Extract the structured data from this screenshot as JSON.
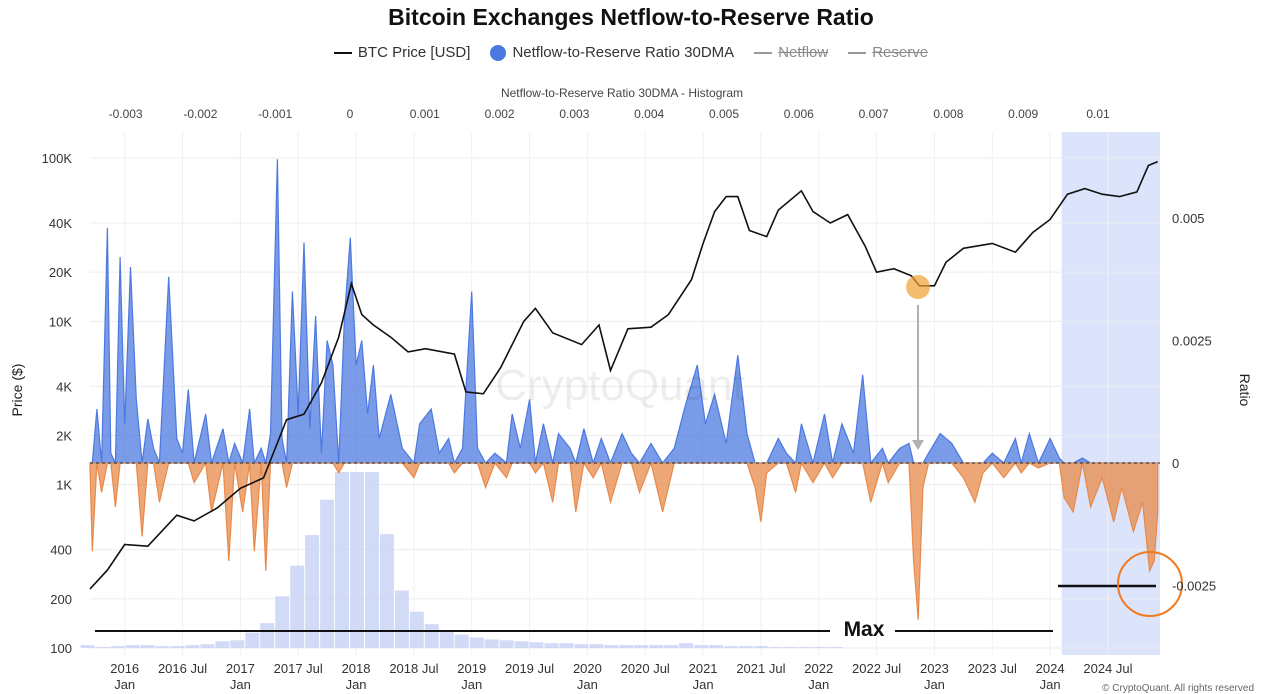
{
  "title": "Bitcoin Exchanges Netflow-to-Reserve Ratio",
  "legend": [
    {
      "label": "BTC Price [USD]",
      "marker": "line",
      "color": "#111111",
      "active": true
    },
    {
      "label": "Netflow-to-Reserve Ratio 30DMA",
      "marker": "dot",
      "color": "#4c79e0",
      "active": true
    },
    {
      "label": "Netflow",
      "marker": "line",
      "color": "#999999",
      "active": false
    },
    {
      "label": "Reserve",
      "marker": "line",
      "color": "#999999",
      "active": false
    }
  ],
  "watermark": "CryptoQuant",
  "footer": "© CryptoQuant. All rights reserved",
  "annotation_max": "Max",
  "colors": {
    "positive": "#4c79e0",
    "negative": "#e8894a",
    "price": "#111111",
    "histogram": "#c9d4f6",
    "highlight": "#dbe4fb",
    "circle": "#f07a1d",
    "marker": "#f0a030"
  },
  "chart_data": {
    "type": "line",
    "y_left": {
      "label": "Price ($)",
      "scale": "log",
      "ticks": [
        "100",
        "200",
        "400",
        "1K",
        "2K",
        "4K",
        "10K",
        "20K",
        "40K",
        "100K"
      ],
      "tick_values": [
        100,
        200,
        400,
        1000,
        2000,
        4000,
        10000,
        20000,
        40000,
        100000
      ]
    },
    "y_right": {
      "label": "Ratio",
      "ticks": [
        "0.005",
        "0.0025",
        "0",
        "-0.0025"
      ],
      "tick_values": [
        0.005,
        0.0025,
        0,
        -0.0025
      ]
    },
    "x_top": {
      "label": "Netflow-to-Reserve Ratio 30DMA - Histogram",
      "ticks": [
        "-0.003",
        "-0.002",
        "-0.001",
        "0",
        "0.001",
        "0.002",
        "0.003",
        "0.004",
        "0.005",
        "0.006",
        "0.007",
        "0.008",
        "0.009",
        "0.01"
      ],
      "tick_values": [
        -0.003,
        -0.002,
        -0.001,
        0,
        0.001,
        0.002,
        0.003,
        0.004,
        0.005,
        0.006,
        0.007,
        0.008,
        0.009,
        0.01
      ]
    },
    "x_bottom": {
      "ticks": [
        {
          "line1": "2016",
          "line2": "Jan",
          "t": 2016.0
        },
        {
          "line1": "2016 Jul",
          "line2": "",
          "t": 2016.5
        },
        {
          "line1": "2017",
          "line2": "Jan",
          "t": 2017.0
        },
        {
          "line1": "2017 Jul",
          "line2": "",
          "t": 2017.5
        },
        {
          "line1": "2018",
          "line2": "Jan",
          "t": 2018.0
        },
        {
          "line1": "2018 Jul",
          "line2": "",
          "t": 2018.5
        },
        {
          "line1": "2019",
          "line2": "Jan",
          "t": 2019.0
        },
        {
          "line1": "2019 Jul",
          "line2": "",
          "t": 2019.5
        },
        {
          "line1": "2020",
          "line2": "Jan",
          "t": 2020.0
        },
        {
          "line1": "2020 Jul",
          "line2": "",
          "t": 2020.5
        },
        {
          "line1": "2021",
          "line2": "Jan",
          "t": 2021.0
        },
        {
          "line1": "2021 Jul",
          "line2": "",
          "t": 2021.5
        },
        {
          "line1": "2022",
          "line2": "Jan",
          "t": 2022.0
        },
        {
          "line1": "2022 Jul",
          "line2": "",
          "t": 2022.5
        },
        {
          "line1": "2023",
          "line2": "Jan",
          "t": 2023.0
        },
        {
          "line1": "2023 Jul",
          "line2": "",
          "t": 2023.5
        },
        {
          "line1": "2024",
          "line2": "Jan",
          "t": 2024.0
        },
        {
          "line1": "2024 Jul",
          "line2": "",
          "t": 2024.5
        }
      ],
      "range": [
        2015.7,
        2024.95
      ]
    },
    "highlight_range": [
      2024.1,
      2024.95
    ],
    "btc_price": [
      [
        2015.7,
        230
      ],
      [
        2015.85,
        300
      ],
      [
        2016.0,
        430
      ],
      [
        2016.2,
        420
      ],
      [
        2016.45,
        650
      ],
      [
        2016.6,
        600
      ],
      [
        2016.8,
        720
      ],
      [
        2017.0,
        950
      ],
      [
        2017.2,
        1100
      ],
      [
        2017.4,
        2500
      ],
      [
        2017.55,
        2700
      ],
      [
        2017.7,
        4200
      ],
      [
        2017.85,
        8000
      ],
      [
        2017.96,
        17000
      ],
      [
        2018.05,
        11000
      ],
      [
        2018.15,
        9500
      ],
      [
        2018.3,
        8000
      ],
      [
        2018.45,
        6500
      ],
      [
        2018.6,
        6800
      ],
      [
        2018.85,
        6300
      ],
      [
        2018.95,
        3700
      ],
      [
        2019.1,
        3600
      ],
      [
        2019.25,
        5200
      ],
      [
        2019.45,
        10000
      ],
      [
        2019.55,
        12000
      ],
      [
        2019.7,
        8500
      ],
      [
        2019.95,
        7200
      ],
      [
        2020.1,
        9500
      ],
      [
        2020.2,
        5000
      ],
      [
        2020.35,
        9000
      ],
      [
        2020.55,
        9200
      ],
      [
        2020.7,
        11000
      ],
      [
        2020.9,
        18000
      ],
      [
        2021.0,
        30000
      ],
      [
        2021.1,
        47000
      ],
      [
        2021.2,
        58000
      ],
      [
        2021.3,
        58000
      ],
      [
        2021.4,
        36000
      ],
      [
        2021.55,
        33000
      ],
      [
        2021.65,
        48000
      ],
      [
        2021.85,
        63000
      ],
      [
        2021.95,
        47000
      ],
      [
        2022.1,
        40000
      ],
      [
        2022.25,
        45000
      ],
      [
        2022.4,
        29000
      ],
      [
        2022.5,
        20000
      ],
      [
        2022.65,
        21000
      ],
      [
        2022.8,
        19000
      ],
      [
        2022.87,
        16500
      ],
      [
        2023.0,
        16500
      ],
      [
        2023.1,
        23000
      ],
      [
        2023.25,
        28000
      ],
      [
        2023.5,
        30000
      ],
      [
        2023.7,
        26500
      ],
      [
        2023.85,
        35000
      ],
      [
        2024.0,
        42000
      ],
      [
        2024.15,
        60000
      ],
      [
        2024.3,
        65000
      ],
      [
        2024.45,
        60000
      ],
      [
        2024.6,
        58000
      ],
      [
        2024.75,
        62000
      ],
      [
        2024.85,
        90000
      ],
      [
        2024.93,
        95000
      ]
    ],
    "netflow_ratio": [
      [
        2015.7,
        -0.0001
      ],
      [
        2015.72,
        -0.0018
      ],
      [
        2015.76,
        0.0011
      ],
      [
        2015.8,
        -0.0006
      ],
      [
        2015.85,
        0.0048
      ],
      [
        2015.88,
        0.0002
      ],
      [
        2015.92,
        -0.0009
      ],
      [
        2015.96,
        0.0042
      ],
      [
        2016.0,
        0.0008
      ],
      [
        2016.05,
        0.004
      ],
      [
        2016.1,
        0.0013
      ],
      [
        2016.15,
        -0.0015
      ],
      [
        2016.2,
        0.0009
      ],
      [
        2016.25,
        0.0003
      ],
      [
        2016.3,
        -0.0008
      ],
      [
        2016.38,
        0.0038
      ],
      [
        2016.45,
        0.0005
      ],
      [
        2016.5,
        0.0002
      ],
      [
        2016.55,
        0.0015
      ],
      [
        2016.6,
        -0.0004
      ],
      [
        2016.7,
        0.001
      ],
      [
        2016.75,
        -0.001
      ],
      [
        2016.85,
        0.0007
      ],
      [
        2016.9,
        -0.002
      ],
      [
        2016.95,
        0.0004
      ],
      [
        2017.02,
        -0.001
      ],
      [
        2017.08,
        0.0011
      ],
      [
        2017.12,
        -0.0018
      ],
      [
        2017.18,
        0.0003
      ],
      [
        2017.22,
        -0.0022
      ],
      [
        2017.26,
        0.0006
      ],
      [
        2017.32,
        0.0062
      ],
      [
        2017.36,
        0.0005
      ],
      [
        2017.4,
        -0.0005
      ],
      [
        2017.45,
        0.0035
      ],
      [
        2017.5,
        0.001
      ],
      [
        2017.55,
        0.0045
      ],
      [
        2017.6,
        0.0007
      ],
      [
        2017.65,
        0.003
      ],
      [
        2017.7,
        0.0002
      ],
      [
        2017.75,
        0.0025
      ],
      [
        2017.8,
        0.002
      ],
      [
        2017.85,
        -0.0002
      ],
      [
        2017.9,
        0.003
      ],
      [
        2017.95,
        0.0046
      ],
      [
        2018.0,
        0.002
      ],
      [
        2018.05,
        0.0025
      ],
      [
        2018.1,
        0.001
      ],
      [
        2018.15,
        0.002
      ],
      [
        2018.2,
        0.0005
      ],
      [
        2018.3,
        0.0014
      ],
      [
        2018.4,
        0.0003
      ],
      [
        2018.5,
        -0.0003
      ],
      [
        2018.55,
        0.0008
      ],
      [
        2018.65,
        0.0011
      ],
      [
        2018.72,
        0.0002
      ],
      [
        2018.8,
        0.0005
      ],
      [
        2018.85,
        -0.0002
      ],
      [
        2018.92,
        0.0003
      ],
      [
        2019.0,
        0.0035
      ],
      [
        2019.05,
        0.0003
      ],
      [
        2019.12,
        -0.0005
      ],
      [
        2019.2,
        0.0002
      ],
      [
        2019.3,
        -0.0003
      ],
      [
        2019.35,
        0.001
      ],
      [
        2019.42,
        0.0003
      ],
      [
        2019.5,
        0.0013
      ],
      [
        2019.55,
        -0.0002
      ],
      [
        2019.62,
        0.0008
      ],
      [
        2019.7,
        -0.0008
      ],
      [
        2019.75,
        0.0006
      ],
      [
        2019.85,
        0.0003
      ],
      [
        2019.9,
        -0.001
      ],
      [
        2019.97,
        0.0007
      ],
      [
        2020.05,
        -0.0003
      ],
      [
        2020.12,
        0.0005
      ],
      [
        2020.2,
        -0.0008
      ],
      [
        2020.3,
        0.0006
      ],
      [
        2020.38,
        0.0002
      ],
      [
        2020.45,
        -0.0006
      ],
      [
        2020.55,
        0.0004
      ],
      [
        2020.65,
        -0.001
      ],
      [
        2020.75,
        0.0003
      ],
      [
        2020.85,
        0.0012
      ],
      [
        2020.95,
        0.002
      ],
      [
        2021.02,
        0.0008
      ],
      [
        2021.1,
        0.0014
      ],
      [
        2021.2,
        0.0004
      ],
      [
        2021.3,
        0.0022
      ],
      [
        2021.38,
        0.0006
      ],
      [
        2021.45,
        -0.0005
      ],
      [
        2021.5,
        -0.0012
      ],
      [
        2021.55,
        -0.0002
      ],
      [
        2021.65,
        0.0005
      ],
      [
        2021.72,
        0.0002
      ],
      [
        2021.8,
        -0.0006
      ],
      [
        2021.85,
        0.0008
      ],
      [
        2021.95,
        -0.0004
      ],
      [
        2022.05,
        0.001
      ],
      [
        2022.12,
        -0.0003
      ],
      [
        2022.2,
        0.0008
      ],
      [
        2022.3,
        0.0002
      ],
      [
        2022.38,
        0.0018
      ],
      [
        2022.45,
        -0.0008
      ],
      [
        2022.55,
        0.0003
      ],
      [
        2022.6,
        -0.0004
      ],
      [
        2022.7,
        0.0003
      ],
      [
        2022.78,
        0.0004
      ],
      [
        2022.82,
        -0.002
      ],
      [
        2022.86,
        -0.0032
      ],
      [
        2022.9,
        -0.0005
      ],
      [
        2022.95,
        0.0002
      ],
      [
        2023.05,
        0.0006
      ],
      [
        2023.15,
        0.0004
      ],
      [
        2023.25,
        -0.0003
      ],
      [
        2023.35,
        -0.0008
      ],
      [
        2023.42,
        -0.0002
      ],
      [
        2023.5,
        0.0002
      ],
      [
        2023.6,
        -0.0003
      ],
      [
        2023.7,
        0.0005
      ],
      [
        2023.75,
        -0.0002
      ],
      [
        2023.82,
        0.0006
      ],
      [
        2023.9,
        -0.0001
      ],
      [
        2024.0,
        0.0005
      ],
      [
        2024.08,
        0.0001
      ],
      [
        2024.12,
        -0.0007
      ],
      [
        2024.2,
        -0.001
      ],
      [
        2024.28,
        0.0001
      ],
      [
        2024.35,
        -0.0009
      ],
      [
        2024.45,
        -0.0003
      ],
      [
        2024.55,
        -0.0012
      ],
      [
        2024.62,
        -0.0005
      ],
      [
        2024.72,
        -0.0014
      ],
      [
        2024.8,
        -0.0008
      ],
      [
        2024.86,
        -0.0022
      ],
      [
        2024.9,
        -0.002
      ],
      [
        2024.93,
        -0.001
      ]
    ],
    "histogram": {
      "bin_values": [
        -0.0035,
        -0.0033,
        -0.0031,
        -0.0029,
        -0.0027,
        -0.0025,
        -0.0023,
        -0.0021,
        -0.0019,
        -0.0017,
        -0.0015,
        -0.0013,
        -0.0011,
        -0.0009,
        -0.0007,
        -0.0005,
        -0.0003,
        -0.0001,
        0.0001,
        0.0003,
        0.0005,
        0.0007,
        0.0009,
        0.0011,
        0.0013,
        0.0015,
        0.0017,
        0.0019,
        0.0021,
        0.0023,
        0.0025,
        0.0027,
        0.0029,
        0.0031,
        0.0033,
        0.0035,
        0.0037,
        0.0039,
        0.0041,
        0.0043,
        0.0045,
        0.0047,
        0.0049,
        0.0051,
        0.0053,
        0.0055,
        0.0057,
        0.0059,
        0.0061,
        0.0063,
        0.0065
      ],
      "counts": [
        3,
        1,
        2,
        3,
        3,
        2,
        2,
        3,
        4,
        7,
        8,
        16,
        26,
        54,
        86,
        118,
        155,
        184,
        184,
        184,
        119,
        60,
        38,
        25,
        17,
        14,
        11,
        9,
        8,
        7,
        6,
        5,
        5,
        4,
        4,
        3,
        3,
        3,
        3,
        3,
        5,
        3,
        3,
        2,
        2,
        2,
        1,
        1,
        1,
        1,
        1
      ],
      "max": 184
    }
  }
}
